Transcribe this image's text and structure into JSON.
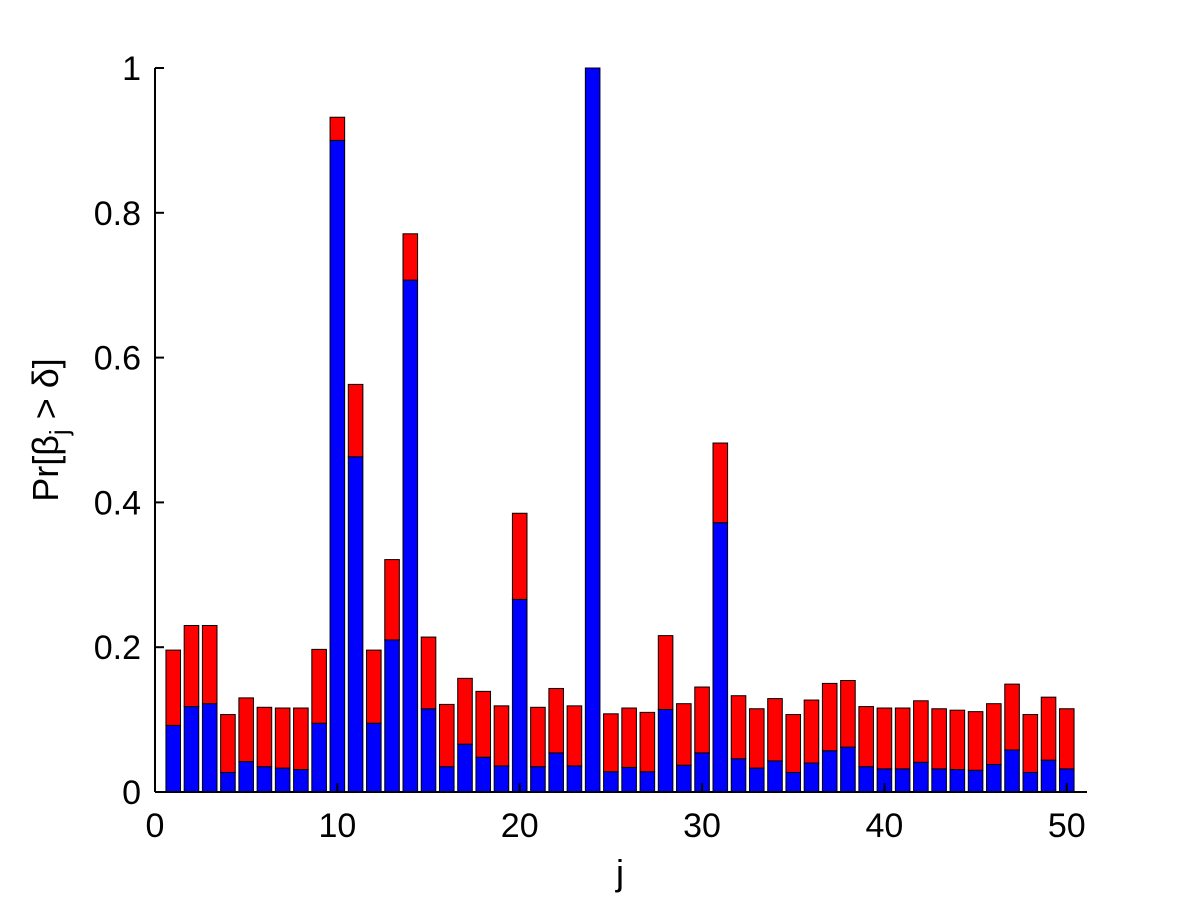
{
  "chart_data": {
    "type": "bar",
    "stacked": true,
    "x": [
      1,
      2,
      3,
      4,
      5,
      6,
      7,
      8,
      9,
      10,
      11,
      12,
      13,
      14,
      15,
      16,
      17,
      18,
      19,
      20,
      21,
      22,
      23,
      24,
      25,
      26,
      27,
      28,
      29,
      30,
      31,
      32,
      33,
      34,
      35,
      36,
      37,
      38,
      39,
      40,
      41,
      42,
      43,
      44,
      45,
      46,
      47,
      48,
      49,
      50
    ],
    "series": [
      {
        "color": "#0000ff",
        "values": [
          0.092,
          0.118,
          0.122,
          0.027,
          0.042,
          0.035,
          0.033,
          0.031,
          0.095,
          0.9,
          0.463,
          0.095,
          0.21,
          0.707,
          0.115,
          0.035,
          0.066,
          0.048,
          0.036,
          0.266,
          0.035,
          0.054,
          0.036,
          1.0,
          0.028,
          0.034,
          0.028,
          0.114,
          0.037,
          0.054,
          0.372,
          0.046,
          0.033,
          0.043,
          0.027,
          0.04,
          0.057,
          0.062,
          0.035,
          0.032,
          0.032,
          0.041,
          0.032,
          0.031,
          0.03,
          0.038,
          0.058,
          0.027,
          0.044,
          0.032
        ]
      },
      {
        "color": "#ff0000",
        "values": [
          0.104,
          0.112,
          0.108,
          0.08,
          0.088,
          0.082,
          0.083,
          0.085,
          0.102,
          0.032,
          0.1,
          0.101,
          0.111,
          0.064,
          0.099,
          0.086,
          0.091,
          0.091,
          0.083,
          0.119,
          0.082,
          0.089,
          0.083,
          0.0,
          0.08,
          0.082,
          0.082,
          0.102,
          0.085,
          0.091,
          0.11,
          0.087,
          0.082,
          0.086,
          0.08,
          0.087,
          0.093,
          0.092,
          0.083,
          0.084,
          0.084,
          0.085,
          0.083,
          0.082,
          0.081,
          0.084,
          0.091,
          0.08,
          0.087,
          0.083
        ]
      }
    ],
    "xlim": [
      0,
      51
    ],
    "ylim": [
      0,
      1
    ],
    "xticks": [
      "0",
      "10",
      "20",
      "30",
      "40",
      "50"
    ],
    "yticks": [
      "0",
      "0.2",
      "0.4",
      "0.6",
      "0.8",
      "1"
    ],
    "xlabel": "j",
    "ylabel": "Pr[βj > δ]",
    "ylabel_parts": {
      "pre": "Pr[β",
      "sub": "j",
      "post": " > δ]"
    },
    "grid": false,
    "legend": "none"
  }
}
